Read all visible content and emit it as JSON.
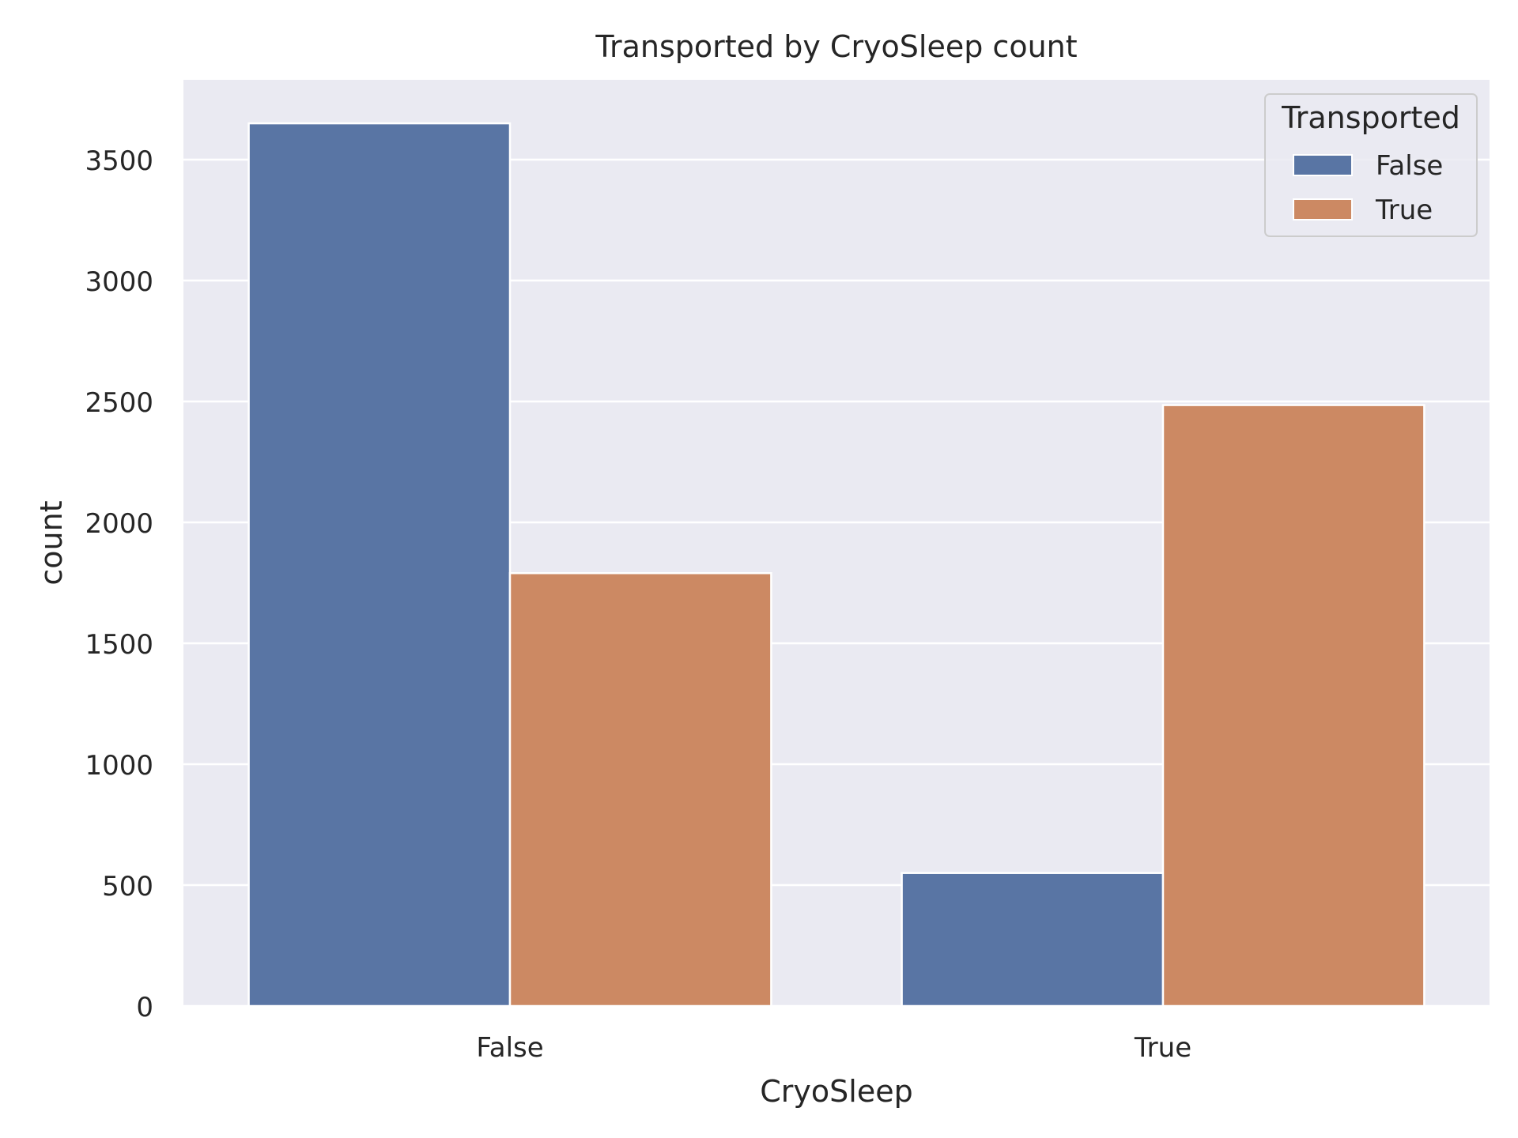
{
  "chart_data": {
    "type": "bar",
    "title": "Transported by CryoSleep count",
    "xlabel": "CryoSleep",
    "ylabel": "count",
    "categories": [
      "False",
      "True"
    ],
    "series": [
      {
        "name": "False",
        "color": "#5975a4",
        "values": [
          3650,
          550
        ]
      },
      {
        "name": "True",
        "color": "#cc8963",
        "values": [
          1790,
          2485
        ]
      }
    ],
    "yticks": [
      0,
      500,
      1000,
      1500,
      2000,
      2500,
      3000,
      3500
    ],
    "ylim": [
      0,
      3830
    ],
    "grid": true,
    "legend": {
      "title": "Transported",
      "position": "top-right"
    },
    "colors": {
      "plot_background": "#eaeaf2",
      "grid": "#ffffff",
      "text": "#262626"
    }
  }
}
